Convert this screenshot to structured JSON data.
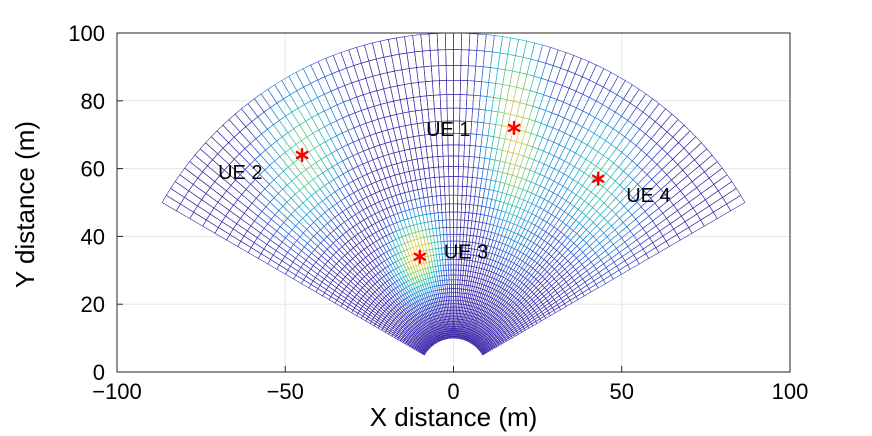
{
  "chart_data": {
    "type": "heatmap",
    "title": "",
    "xlabel": "X distance (m)",
    "ylabel": "Y distance (m)",
    "xlim": [
      -100,
      100
    ],
    "ylim": [
      0,
      100
    ],
    "xticks": [
      -100,
      -50,
      0,
      50,
      100
    ],
    "yticks": [
      0,
      20,
      40,
      60,
      80,
      100
    ],
    "grid": true,
    "sector": {
      "r_min": 10,
      "r_max": 100,
      "theta_min_deg": 30,
      "theta_max_deg": 150
    },
    "colormap": [
      "#3d26a8",
      "#2e5bd8",
      "#1a9be0",
      "#2bbfb1",
      "#7acb6a",
      "#d9c44a",
      "#f8e41e"
    ],
    "hotspots": [
      {
        "x": 18,
        "y": 72,
        "sx": 6,
        "sy": 22,
        "amp": 0.85
      },
      {
        "x": -45,
        "y": 64,
        "sx": 8,
        "sy": 16,
        "amp": 0.65
      },
      {
        "x": -11,
        "y": 35,
        "sx": 5,
        "sy": 8,
        "amp": 0.95
      },
      {
        "x": 43,
        "y": 57,
        "sx": 9,
        "sy": 16,
        "amp": 0.55
      }
    ],
    "markers": [
      {
        "label": "UE 1",
        "x": 18,
        "y": 72
      },
      {
        "label": "UE 2",
        "x": -45,
        "y": 64
      },
      {
        "label": "UE 3",
        "x": -10,
        "y": 34
      },
      {
        "label": "UE 4",
        "x": 43,
        "y": 57
      }
    ],
    "marker_color": "#ff0000"
  }
}
